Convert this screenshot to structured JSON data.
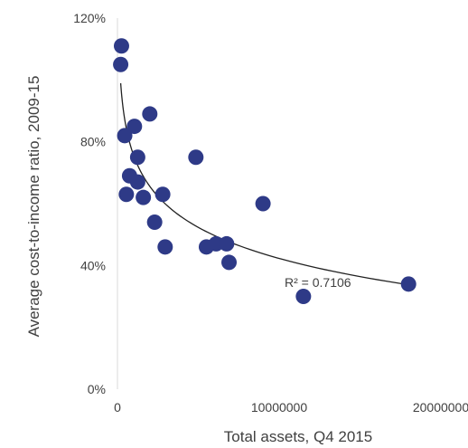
{
  "chart_data": {
    "type": "scatter",
    "xlabel": "Total assets, Q4 2015",
    "ylabel": "Average cost-to-income ratio, 2009-15",
    "xlim": [
      0,
      20000000
    ],
    "ylim": [
      0,
      120
    ],
    "x_ticks": [
      {
        "value": 0,
        "label": "0"
      },
      {
        "value": 10000000,
        "label": "10000000"
      },
      {
        "value": 20000000,
        "label": "20000000"
      }
    ],
    "y_ticks": [
      {
        "value": 0,
        "label": "0%"
      },
      {
        "value": 40,
        "label": "40%"
      },
      {
        "value": 80,
        "label": "80%"
      },
      {
        "value": 120,
        "label": "120%"
      }
    ],
    "point_color": "#2e3a87",
    "trendline": {
      "type": "log",
      "color": "#222222",
      "label": "R² = 0.7106",
      "r_squared": 0.7106
    },
    "points": [
      {
        "x": 250000,
        "y": 111
      },
      {
        "x": 200000,
        "y": 105
      },
      {
        "x": 450000,
        "y": 82
      },
      {
        "x": 1050000,
        "y": 85
      },
      {
        "x": 2000000,
        "y": 89
      },
      {
        "x": 1250000,
        "y": 75
      },
      {
        "x": 750000,
        "y": 69
      },
      {
        "x": 1250000,
        "y": 67
      },
      {
        "x": 550000,
        "y": 63
      },
      {
        "x": 1600000,
        "y": 62
      },
      {
        "x": 2800000,
        "y": 63
      },
      {
        "x": 2300000,
        "y": 54
      },
      {
        "x": 2950000,
        "y": 46
      },
      {
        "x": 4850000,
        "y": 75
      },
      {
        "x": 5500000,
        "y": 46
      },
      {
        "x": 6100000,
        "y": 47
      },
      {
        "x": 6750000,
        "y": 47
      },
      {
        "x": 6900000,
        "y": 41
      },
      {
        "x": 9000000,
        "y": 60
      },
      {
        "x": 11500000,
        "y": 30
      },
      {
        "x": 18000000,
        "y": 34
      }
    ]
  }
}
